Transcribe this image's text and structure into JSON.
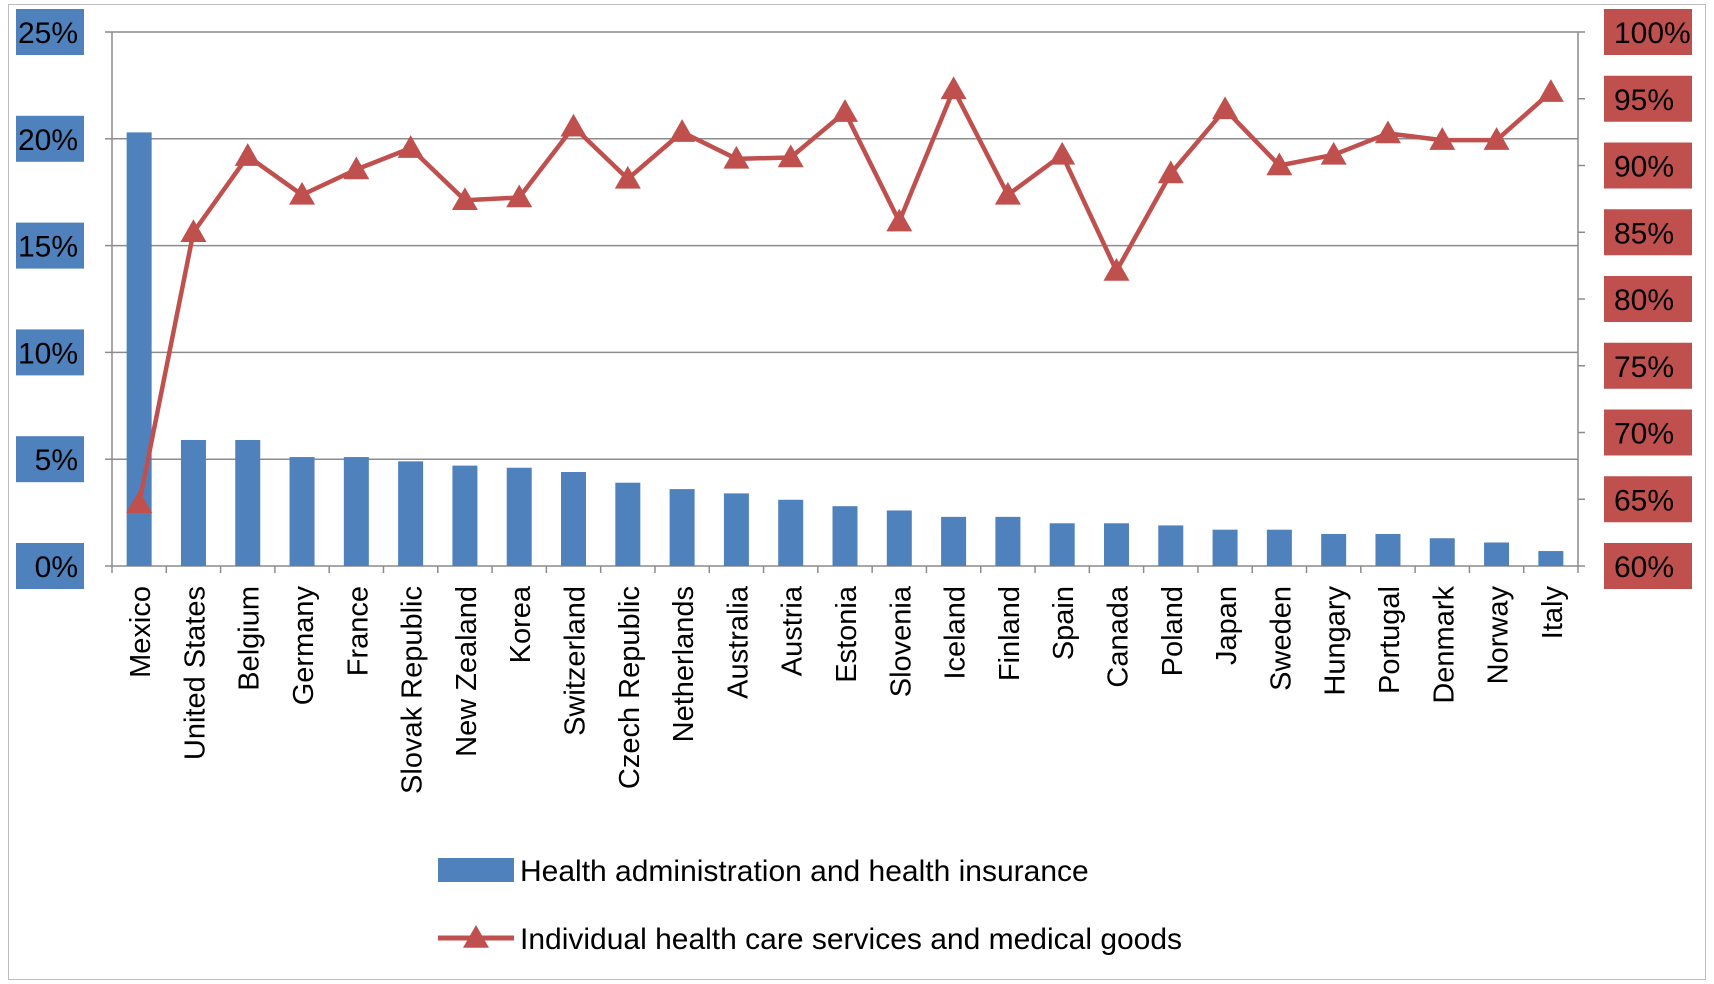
{
  "chart_data": {
    "type": "bar",
    "categories": [
      "Mexico",
      "United States",
      "Belgium",
      "Germany",
      "France",
      "Slovak Republic",
      "New Zealand",
      "Korea",
      "Switzerland",
      "Czech Republic",
      "Netherlands",
      "Australia",
      "Austria",
      "Estonia",
      "Slovenia",
      "Iceland",
      "Finland",
      "Spain",
      "Canada",
      "Poland",
      "Japan",
      "Sweden",
      "Hungary",
      "Portugal",
      "Denmark",
      "Norway",
      "Italy"
    ],
    "series": [
      {
        "name": "Health administration and health insurance",
        "type": "bar",
        "axis": "left",
        "color": "#4f81bd",
        "values": [
          20.3,
          5.9,
          5.9,
          5.1,
          5.1,
          4.9,
          4.7,
          4.6,
          4.4,
          3.9,
          3.6,
          3.4,
          3.1,
          2.8,
          2.6,
          2.3,
          2.3,
          2.0,
          2.0,
          1.9,
          1.7,
          1.7,
          1.5,
          1.5,
          1.3,
          1.1,
          0.7
        ]
      },
      {
        "name": "Individual health care services and medical goods",
        "type": "line",
        "axis": "right",
        "color": "#c0504d",
        "marker": "triangle",
        "values": [
          64.7,
          85.0,
          90.7,
          87.8,
          89.7,
          91.3,
          87.4,
          87.6,
          92.9,
          89.0,
          92.5,
          90.5,
          90.6,
          94.0,
          85.8,
          95.7,
          87.8,
          90.8,
          82.1,
          89.4,
          94.2,
          90.0,
          90.8,
          92.4,
          91.9,
          91.9,
          95.5
        ]
      }
    ],
    "left_axis": {
      "ticks": [
        "0%",
        "5%",
        "10%",
        "15%",
        "20%",
        "25%"
      ],
      "ylim": [
        0,
        25
      ],
      "label_bg": "#4f81bd"
    },
    "right_axis": {
      "ticks": [
        "60%",
        "65%",
        "70%",
        "75%",
        "80%",
        "85%",
        "90%",
        "95%",
        "100%"
      ],
      "ylim": [
        60,
        100
      ],
      "label_bg": "#c0504d"
    },
    "grid": true,
    "legend_position": "bottom"
  }
}
